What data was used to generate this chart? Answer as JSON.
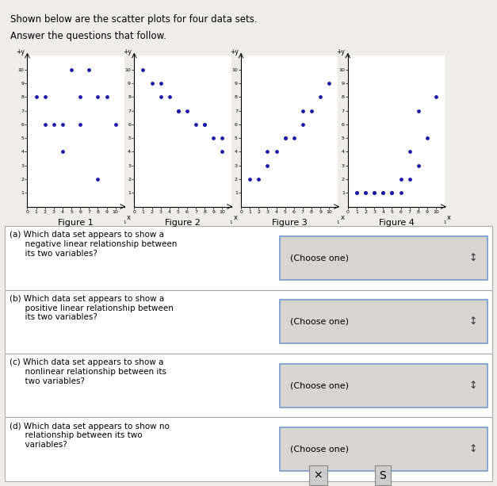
{
  "title_line1": "Shown below are the scatter plots for four data sets.",
  "title_line2": "Answer the questions that follow.",
  "dot_color": "#1a1aaa",
  "dot_size": 12,
  "fig1": {
    "x": [
      1,
      2,
      3,
      4,
      5,
      6,
      7,
      8,
      9,
      10,
      2,
      4,
      6,
      8
    ],
    "y": [
      8,
      6,
      6,
      6,
      10,
      6,
      10,
      8,
      8,
      6,
      8,
      4,
      8,
      2
    ],
    "label": "Figure 1"
  },
  "fig2": {
    "x": [
      1,
      2,
      3,
      3,
      4,
      5,
      5,
      6,
      7,
      8,
      8,
      9,
      10,
      10
    ],
    "y": [
      10,
      9,
      9,
      8,
      8,
      7,
      7,
      7,
      6,
      6,
      6,
      5,
      5,
      4
    ],
    "label": "Figure 2"
  },
  "fig3": {
    "x": [
      1,
      2,
      3,
      4,
      5,
      6,
      7,
      8,
      9,
      10,
      3,
      5,
      7
    ],
    "y": [
      2,
      2,
      3,
      4,
      5,
      5,
      6,
      7,
      8,
      9,
      4,
      5,
      7
    ],
    "label": "Figure 3"
  },
  "fig4": {
    "x": [
      1,
      2,
      3,
      4,
      5,
      6,
      7,
      8,
      9,
      10,
      1,
      2,
      3,
      4,
      5,
      6,
      7,
      8
    ],
    "y": [
      1,
      1,
      1,
      1,
      1,
      1,
      2,
      3,
      5,
      8,
      1,
      1,
      1,
      1,
      1,
      2,
      4,
      7
    ],
    "label": "Figure 4"
  },
  "qa_rows": [
    {
      "question": "(a) Which data set appears to show a\n      negative linear relationship between\n      its two variables?",
      "answer": "(Choose one)"
    },
    {
      "question": "(b) Which data set appears to show a\n      positive linear relationship between\n      its two variables?",
      "answer": "(Choose one)"
    },
    {
      "question": "(c) Which data set appears to show a\n      nonlinear relationship between its\n      two variables?",
      "answer": "(Choose one)"
    },
    {
      "question": "(d) Which data set appears to show no\n      relationship between its two\n      variables?",
      "answer": "(Choose one)"
    }
  ],
  "bg_color": "#f0ede8",
  "table_bg": "#e8e5e0",
  "choose_bg": "#d8d5d0",
  "choose_border": "#7799cc",
  "border_color": "#aaaaaa"
}
